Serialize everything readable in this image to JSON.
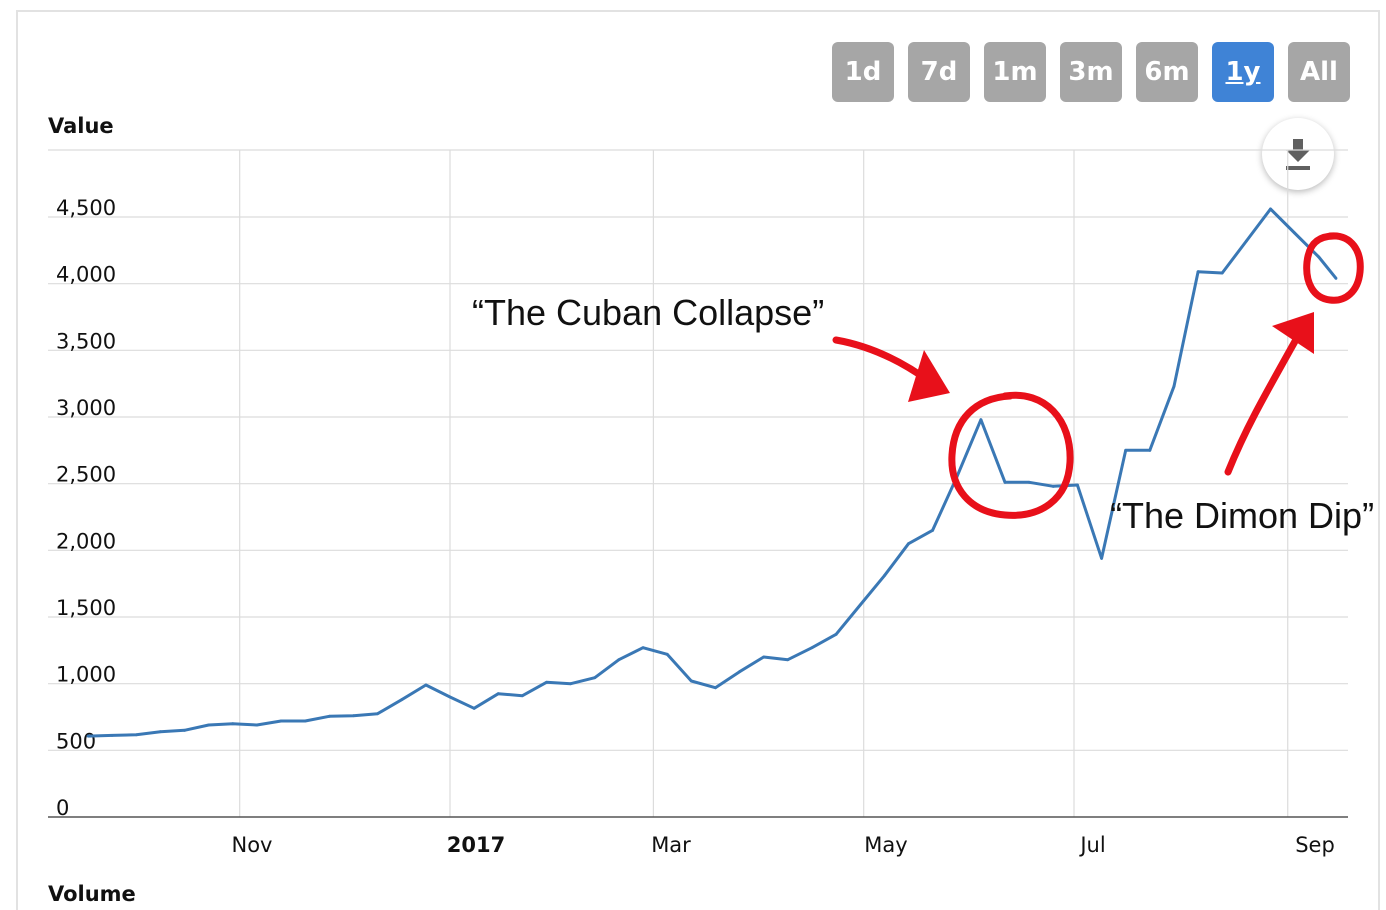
{
  "range_selector": {
    "buttons": [
      "1d",
      "7d",
      "1m",
      "3m",
      "6m",
      "1y",
      "All"
    ],
    "selected": "1y"
  },
  "download_button": {
    "icon": "download-icon"
  },
  "volume_label": "Volume",
  "colors": {
    "line": "#3a78b5",
    "annotation": "#e8101a",
    "button": "#a6a6a6",
    "button_active": "#3f83d6"
  },
  "chart_data": {
    "type": "line",
    "title": "",
    "ylabel": "Value",
    "xlabel": "",
    "ylim": [
      0,
      5000
    ],
    "y_ticks": [
      "0",
      "500",
      "1,000",
      "1,500",
      "2,000",
      "2,500",
      "3,000",
      "3,500",
      "4,000",
      "4,500"
    ],
    "x_ticks": [
      "Nov",
      "2017",
      "Mar",
      "May",
      "Jul",
      "Sep"
    ],
    "x_range": [
      "2016-09-18",
      "2017-09-15"
    ],
    "grid": true,
    "series": [
      {
        "x": [
          "2016-09-18",
          "2016-09-25",
          "2016-10-02",
          "2016-10-09",
          "2016-10-16",
          "2016-10-23",
          "2016-10-30",
          "2016-11-06",
          "2016-11-13",
          "2016-11-20",
          "2016-11-27",
          "2016-12-04",
          "2016-12-11",
          "2016-12-18",
          "2016-12-25",
          "2017-01-01",
          "2017-01-08",
          "2017-01-15",
          "2017-01-22",
          "2017-01-29",
          "2017-02-05",
          "2017-02-12",
          "2017-02-19",
          "2017-02-26",
          "2017-03-05",
          "2017-03-12",
          "2017-03-19",
          "2017-03-26",
          "2017-04-02",
          "2017-04-09",
          "2017-04-16",
          "2017-04-23",
          "2017-04-30",
          "2017-05-07",
          "2017-05-14",
          "2017-05-21",
          "2017-05-28",
          "2017-06-04",
          "2017-06-11",
          "2017-06-18",
          "2017-06-25",
          "2017-07-02",
          "2017-07-09",
          "2017-07-16",
          "2017-07-23",
          "2017-07-30",
          "2017-08-06",
          "2017-08-13",
          "2017-08-20",
          "2017-08-27",
          "2017-09-03",
          "2017-09-10",
          "2017-09-15"
        ],
        "values": [
          607,
          612,
          617,
          640,
          650,
          690,
          700,
          690,
          720,
          720,
          755,
          760,
          775,
          880,
          990,
          900,
          815,
          925,
          910,
          1010,
          1000,
          1045,
          1180,
          1270,
          1220,
          1020,
          970,
          1090,
          1200,
          1180,
          1270,
          1370,
          1590,
          1810,
          2050,
          2150,
          2550,
          2980,
          2510,
          2510,
          2480,
          2490,
          1940,
          2750,
          2750,
          3230,
          4090,
          4080,
          4320,
          4560,
          4380,
          4200,
          4040
        ]
      }
    ],
    "annotations": [
      "“The Cuban Collapse”",
      "“The Dimon Dip”"
    ]
  }
}
